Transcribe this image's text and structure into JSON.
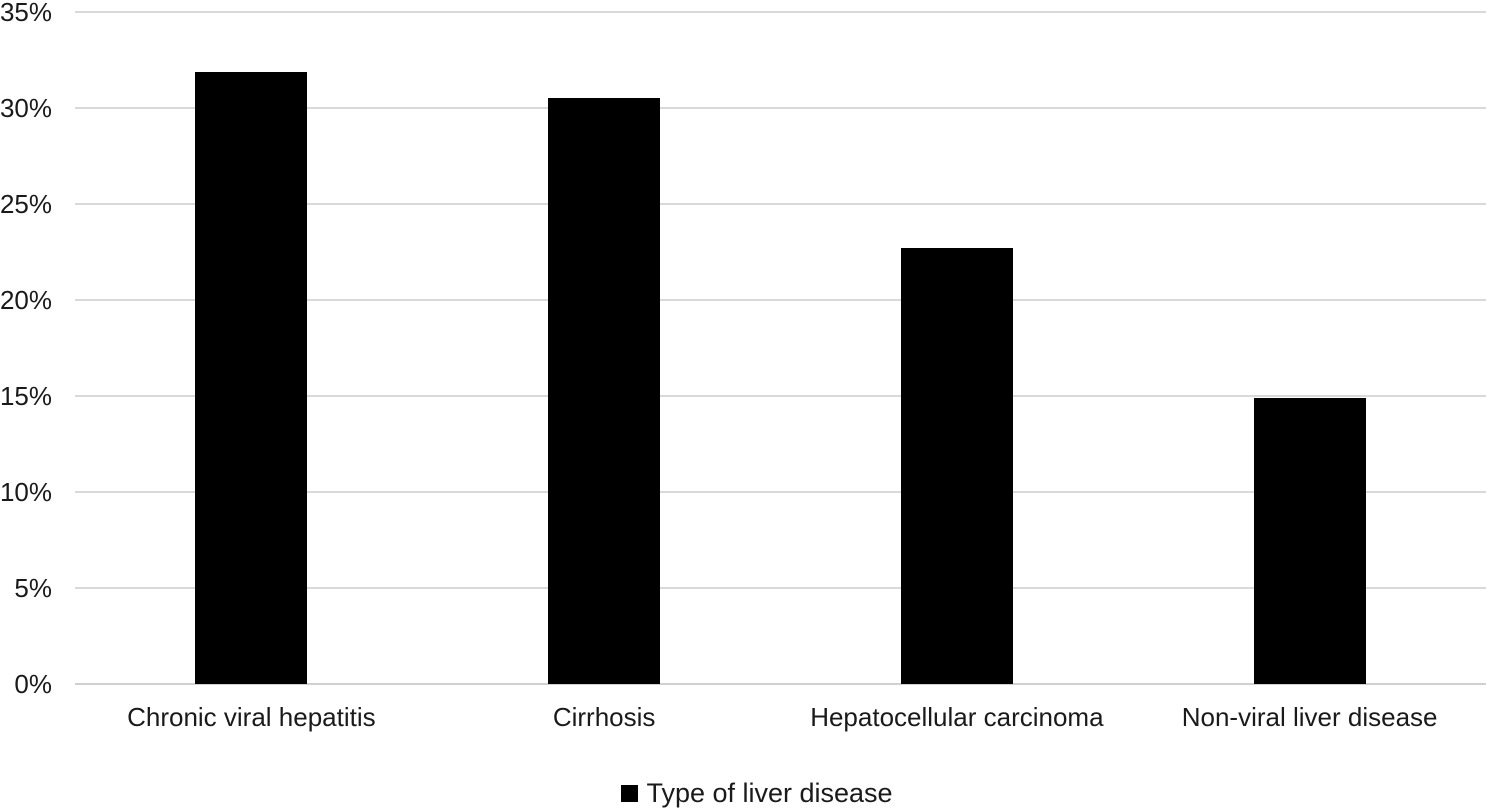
{
  "chart_data": {
    "type": "bar",
    "title": "",
    "categories": [
      "Chronic viral hepatitis",
      "Cirrhosis",
      "Hepatocellular carcinoma",
      "Non-viral liver disease"
    ],
    "values": [
      31.9,
      30.5,
      22.7,
      14.9
    ],
    "value_unit": "%",
    "xlabel": "",
    "ylabel": "",
    "ylim": [
      0,
      35
    ],
    "ytick_step": 5,
    "ytick_labels": [
      "0%",
      "5%",
      "10%",
      "15%",
      "20%",
      "25%",
      "30%",
      "35%"
    ],
    "grid": "horizontal gridlines on",
    "legend_position": "bottom",
    "bar_color": "#000000",
    "gridline_color": "#d9d9d9",
    "text_color": "#1a1a1a",
    "background_color": "#ffffff"
  },
  "legend": {
    "marker": "filled-square",
    "label": "Type of liver disease"
  }
}
